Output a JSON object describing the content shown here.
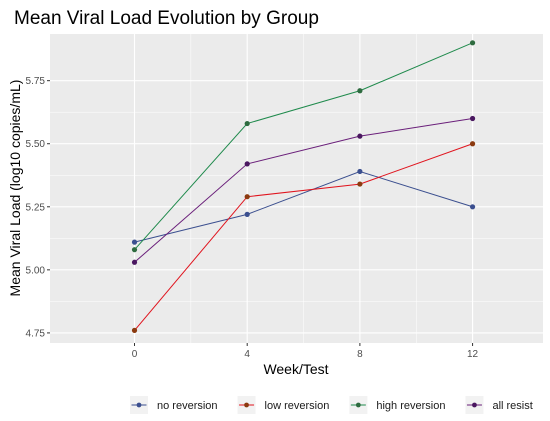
{
  "chart_data": {
    "type": "line",
    "title": "Mean Viral Load Evolution by Group",
    "xlabel": "Week/Test",
    "ylabel": "Mean Viral Load (log10 copies/mL)",
    "x": [
      0,
      4,
      8,
      12
    ],
    "xlim": [
      -3,
      14.5
    ],
    "ylim": [
      4.71,
      5.935
    ],
    "xticks": [
      0,
      4,
      8,
      12
    ],
    "yticks": [
      4.75,
      5.0,
      5.25,
      5.5,
      5.75
    ],
    "ytick_labels": [
      "4.75",
      "5.00",
      "5.25",
      "5.50",
      "5.75"
    ],
    "grid": true,
    "legend_position": "bottom",
    "series": [
      {
        "name": "no reversion",
        "color": "#3b4f8f",
        "values": [
          5.11,
          5.22,
          5.39,
          5.25
        ]
      },
      {
        "name": "low reversion",
        "color": "#e0141e",
        "values": [
          4.76,
          5.29,
          5.34,
          5.5
        ]
      },
      {
        "name": "high reversion",
        "color": "#1f8a4c",
        "values": [
          5.08,
          5.58,
          5.71,
          5.9
        ]
      },
      {
        "name": "all resist",
        "color": "#6a1f7a",
        "values": [
          5.03,
          5.42,
          5.53,
          5.6
        ]
      }
    ],
    "point_colors": [
      "#3b4f8f",
      "#8b3a0f",
      "#2e6b3f",
      "#4a1760"
    ]
  }
}
